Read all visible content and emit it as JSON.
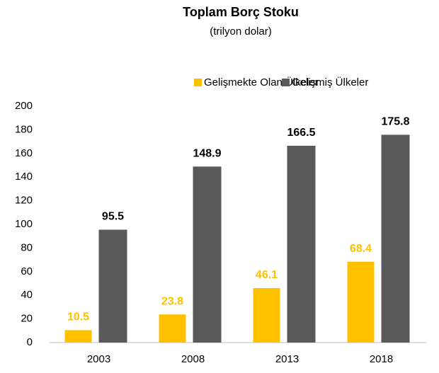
{
  "chart_data": {
    "type": "bar",
    "title": "Toplam Borç Stoku",
    "subtitle": "(trilyon dolar)",
    "categories": [
      "2003",
      "2008",
      "2013",
      "2018"
    ],
    "series": [
      {
        "name": "Gelişmekte Olan Ülkeler",
        "color": "#ffc000",
        "values": [
          10.5,
          23.8,
          46.1,
          68.4
        ]
      },
      {
        "name": "Gelişmiş Ülkeler",
        "color": "#595959",
        "values": [
          95.5,
          148.9,
          166.5,
          175.8
        ]
      }
    ],
    "ylim": [
      0,
      200
    ],
    "yticks": [
      0,
      20,
      40,
      60,
      80,
      100,
      120,
      140,
      160,
      180,
      200
    ],
    "grid": false,
    "legend": "top"
  }
}
